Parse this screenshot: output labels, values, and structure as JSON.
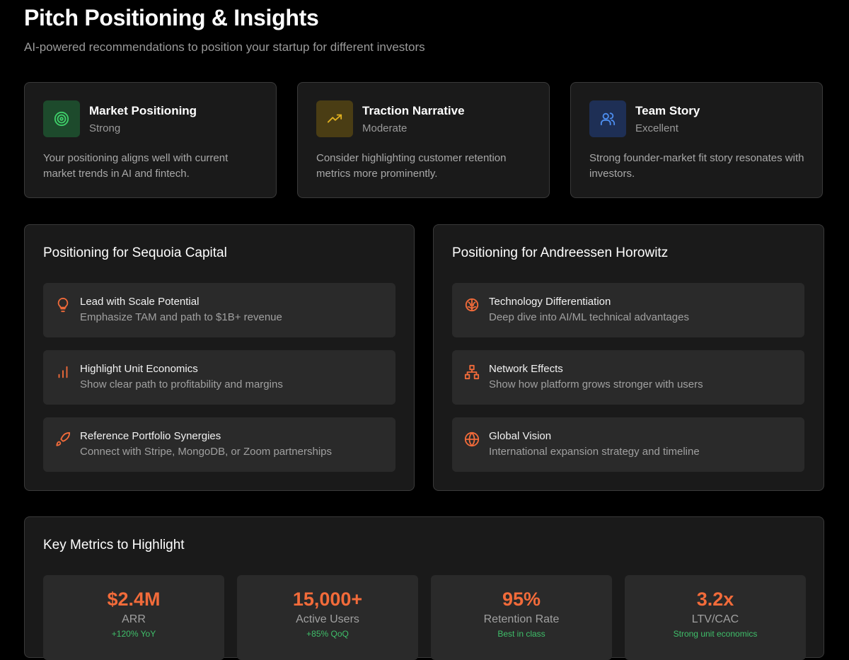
{
  "header": {
    "title": "Pitch Positioning & Insights",
    "subtitle": "AI-powered recommendations to position your startup for different investors"
  },
  "cards": [
    {
      "title": "Market Positioning",
      "status": "Strong",
      "description": "Your positioning aligns well with current market trends in AI and fintech."
    },
    {
      "title": "Traction Narrative",
      "status": "Moderate",
      "description": "Consider highlighting customer retention metrics more prominently."
    },
    {
      "title": "Team Story",
      "status": "Excellent",
      "description": "Strong founder-market fit story resonates with investors."
    }
  ],
  "panels": [
    {
      "title": "Positioning for Sequoia Capital",
      "items": [
        {
          "title": "Lead with Scale Potential",
          "description": "Emphasize TAM and path to $1B+ revenue"
        },
        {
          "title": "Highlight Unit Economics",
          "description": "Show clear path to profitability and margins"
        },
        {
          "title": "Reference Portfolio Synergies",
          "description": "Connect with Stripe, MongoDB, or Zoom partnerships"
        }
      ]
    },
    {
      "title": "Positioning for Andreessen Horowitz",
      "items": [
        {
          "title": "Technology Differentiation",
          "description": "Deep dive into AI/ML technical advantages"
        },
        {
          "title": "Network Effects",
          "description": "Show how platform grows stronger with users"
        },
        {
          "title": "Global Vision",
          "description": "International expansion strategy and timeline"
        }
      ]
    }
  ],
  "metrics": {
    "title": "Key Metrics to Highlight",
    "items": [
      {
        "value": "$2.4M",
        "label": "ARR",
        "note": "+120% YoY"
      },
      {
        "value": "15,000+",
        "label": "Active Users",
        "note": "+85% QoQ"
      },
      {
        "value": "95%",
        "label": "Retention Rate",
        "note": "Best in class"
      },
      {
        "value": "3.2x",
        "label": "LTV/CAC",
        "note": "Strong unit economics"
      }
    ]
  }
}
